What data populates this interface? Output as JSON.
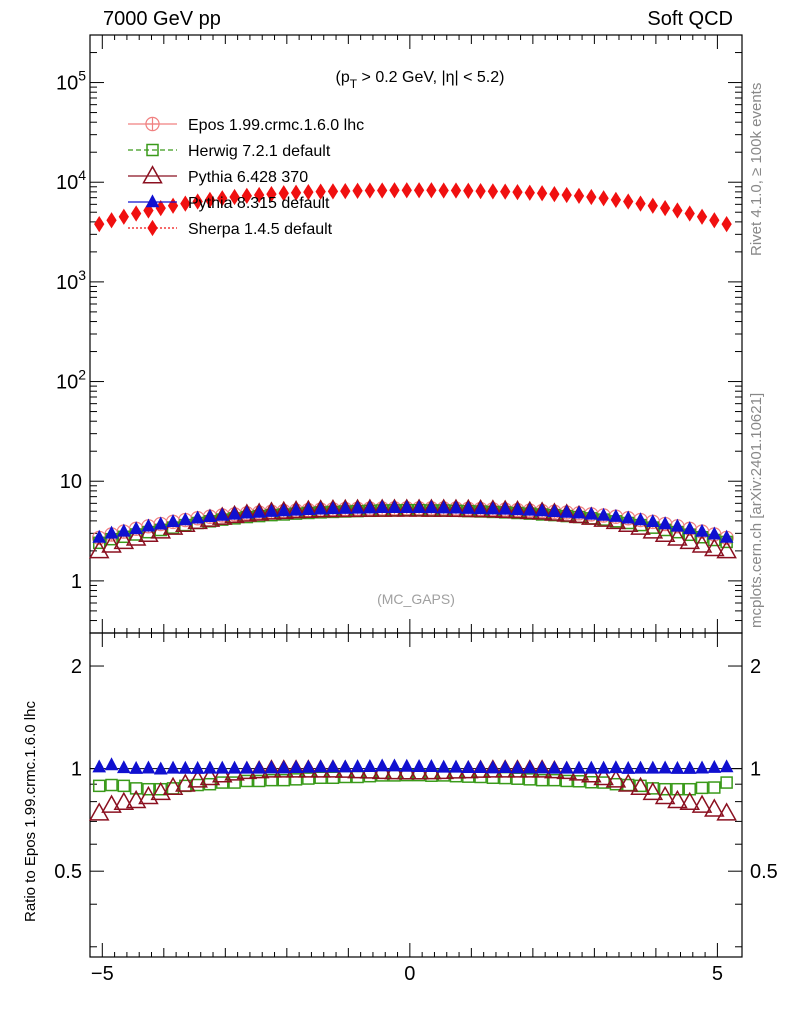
{
  "header": {
    "left": "7000 GeV pp",
    "right": "Soft QCD"
  },
  "side_text": {
    "top": "Rivet 4.1.0, ≥ 100k events",
    "bottom": "mcplots.cern.ch [arXiv:2401.10621]"
  },
  "colors": {
    "epos": "#f08080",
    "herwig": "#3a9a1a",
    "pythia6": "#8b1020",
    "pythia8": "#1010d0",
    "sherpa": "#f01010",
    "axis": "#000000"
  },
  "chart_data": [
    {
      "type": "scatter",
      "title": "(pT > 0.2 GeV, |η| < 5.2)",
      "title_parts": {
        "open": "(p",
        "sub": "T",
        "rest": " > 0.2 GeV, |η| < 5.2)"
      },
      "watermark": "(MC_GAPS)",
      "xlabel": "",
      "ylabel": "",
      "xlim": [
        -5.2,
        5.4
      ],
      "ylim": [
        0.3,
        300000
      ],
      "yscale": "log",
      "ytick_labels": [
        {
          "value": 1,
          "label": "1"
        },
        {
          "value": 10,
          "label": "10"
        },
        {
          "value": 100,
          "base": "10",
          "exp": "2"
        },
        {
          "value": 1000,
          "base": "10",
          "exp": "3"
        },
        {
          "value": 10000,
          "base": "10",
          "exp": "4"
        },
        {
          "value": 100000,
          "base": "10",
          "exp": "5"
        }
      ],
      "legend_position": "top-left",
      "x": [
        -5.05,
        -4.85,
        -4.65,
        -4.45,
        -4.25,
        -4.05,
        -3.85,
        -3.65,
        -3.45,
        -3.25,
        -3.05,
        -2.85,
        -2.65,
        -2.45,
        -2.25,
        -2.05,
        -1.85,
        -1.65,
        -1.45,
        -1.25,
        -1.05,
        -0.85,
        -0.65,
        -0.45,
        -0.25,
        -0.05,
        0.15,
        0.35,
        0.55,
        0.75,
        0.95,
        1.15,
        1.35,
        1.55,
        1.75,
        1.95,
        2.15,
        2.35,
        2.55,
        2.75,
        2.95,
        3.15,
        3.35,
        3.55,
        3.75,
        3.95,
        4.15,
        4.35,
        4.55,
        4.75,
        4.95,
        5.15
      ],
      "series": [
        {
          "name": "Epos 1.99.crmc.1.6.0 lhc",
          "marker": "open-cross-circle",
          "linestyle": "solid",
          "values": [
            2.7,
            2.92,
            3.12,
            3.33,
            3.53,
            3.72,
            3.91,
            4.08,
            4.25,
            4.4,
            4.53,
            4.65,
            4.76,
            4.85,
            4.94,
            5.01,
            5.08,
            5.14,
            5.19,
            5.23,
            5.26,
            5.29,
            5.31,
            5.33,
            5.34,
            5.35,
            5.35,
            5.34,
            5.33,
            5.31,
            5.29,
            5.26,
            5.23,
            5.19,
            5.14,
            5.08,
            5.01,
            4.94,
            4.85,
            4.76,
            4.65,
            4.53,
            4.4,
            4.25,
            4.08,
            3.91,
            3.72,
            3.53,
            3.33,
            3.12,
            2.92,
            2.7
          ]
        },
        {
          "name": "Herwig 7.2.1 default",
          "marker": "open-square",
          "linestyle": "dashed",
          "values": [
            2.41,
            2.62,
            2.77,
            2.92,
            3.08,
            3.24,
            3.42,
            3.63,
            3.81,
            3.96,
            4.12,
            4.24,
            4.37,
            4.47,
            4.57,
            4.64,
            4.73,
            4.8,
            4.87,
            4.92,
            4.97,
            5.01,
            5.05,
            5.09,
            5.1,
            5.12,
            5.12,
            5.09,
            5.09,
            5.05,
            5.01,
            4.97,
            4.92,
            4.87,
            4.8,
            4.73,
            4.64,
            4.57,
            4.47,
            4.37,
            4.24,
            4.12,
            3.96,
            3.81,
            3.63,
            3.42,
            3.24,
            3.08,
            2.9,
            2.74,
            2.57,
            2.46
          ]
        },
        {
          "name": "Pythia 6.428 370",
          "marker": "open-triangle",
          "linestyle": "solid",
          "values": [
            2.0,
            2.28,
            2.48,
            2.68,
            2.92,
            3.16,
            3.44,
            3.68,
            3.93,
            4.14,
            4.34,
            4.51,
            4.66,
            4.77,
            4.89,
            4.96,
            5.04,
            5.09,
            5.14,
            5.17,
            5.19,
            5.21,
            5.22,
            5.22,
            5.23,
            5.23,
            5.23,
            5.22,
            5.22,
            5.21,
            5.19,
            5.17,
            5.14,
            5.09,
            5.04,
            4.96,
            4.89,
            4.77,
            4.66,
            4.51,
            4.34,
            4.14,
            3.93,
            3.68,
            3.44,
            3.16,
            2.92,
            2.68,
            2.48,
            2.28,
            2.1,
            2.0
          ]
        },
        {
          "name": "Pythia 8.315 default",
          "marker": "filled-triangle",
          "linestyle": "solid",
          "values": [
            2.73,
            3.0,
            3.14,
            3.33,
            3.54,
            3.71,
            3.92,
            4.09,
            4.26,
            4.41,
            4.54,
            4.66,
            4.77,
            4.86,
            4.96,
            5.03,
            5.11,
            5.18,
            5.24,
            5.28,
            5.31,
            5.35,
            5.38,
            5.42,
            5.43,
            5.43,
            5.42,
            5.41,
            5.38,
            5.36,
            5.32,
            5.29,
            5.25,
            5.22,
            5.16,
            5.1,
            5.03,
            4.95,
            4.86,
            4.77,
            4.66,
            4.54,
            4.42,
            4.26,
            4.09,
            3.92,
            3.73,
            3.53,
            3.33,
            3.13,
            2.94,
            2.73
          ]
        },
        {
          "name": "Sherpa 1.4.5 default",
          "marker": "filled-diamond",
          "linestyle": "dotted",
          "values": [
            3800,
            4150,
            4500,
            4850,
            5200,
            5500,
            5800,
            6100,
            6400,
            6650,
            6900,
            7100,
            7300,
            7450,
            7600,
            7750,
            7850,
            7950,
            8050,
            8100,
            8150,
            8200,
            8250,
            8250,
            8300,
            8300,
            8300,
            8300,
            8250,
            8250,
            8200,
            8150,
            8100,
            8050,
            7950,
            7850,
            7750,
            7600,
            7450,
            7300,
            7100,
            6900,
            6650,
            6400,
            6100,
            5800,
            5500,
            5200,
            4850,
            4500,
            4150,
            3800
          ]
        }
      ]
    },
    {
      "type": "scatter",
      "title": "",
      "xlabel": "",
      "ylabel": "Ratio to Epos 1.99.crmc.1.6.0 lhc",
      "xlim": [
        -5.2,
        5.4
      ],
      "ylim": [
        0.28,
        2.5
      ],
      "yscale": "log",
      "xtick_labels": [
        {
          "value": -5,
          "label": "−5"
        },
        {
          "value": 0,
          "label": "0"
        },
        {
          "value": 5,
          "label": "5"
        }
      ],
      "ytick_labels": [
        {
          "value": 0.5,
          "label": "0.5"
        },
        {
          "value": 1,
          "label": "1"
        },
        {
          "value": 2,
          "label": "2"
        }
      ],
      "reference_line": 1,
      "x": [
        -5.05,
        -4.85,
        -4.65,
        -4.45,
        -4.25,
        -4.05,
        -3.85,
        -3.65,
        -3.45,
        -3.25,
        -3.05,
        -2.85,
        -2.65,
        -2.45,
        -2.25,
        -2.05,
        -1.85,
        -1.65,
        -1.45,
        -1.25,
        -1.05,
        -0.85,
        -0.65,
        -0.45,
        -0.25,
        -0.05,
        0.15,
        0.35,
        0.55,
        0.75,
        0.95,
        1.15,
        1.35,
        1.55,
        1.75,
        1.95,
        2.15,
        2.35,
        2.55,
        2.75,
        2.95,
        3.15,
        3.35,
        3.55,
        3.75,
        3.95,
        4.15,
        4.35,
        4.55,
        4.75,
        4.95,
        5.15
      ],
      "series": [
        {
          "name": "Herwig 7.2.1 default",
          "marker": "open-square",
          "values": [
            0.89,
            0.895,
            0.89,
            0.875,
            0.87,
            0.87,
            0.875,
            0.89,
            0.895,
            0.9,
            0.91,
            0.91,
            0.92,
            0.92,
            0.925,
            0.925,
            0.93,
            0.935,
            0.94,
            0.94,
            0.945,
            0.945,
            0.95,
            0.955,
            0.955,
            0.957,
            0.957,
            0.953,
            0.955,
            0.95,
            0.947,
            0.945,
            0.94,
            0.938,
            0.934,
            0.93,
            0.925,
            0.925,
            0.92,
            0.918,
            0.912,
            0.91,
            0.9,
            0.895,
            0.89,
            0.875,
            0.87,
            0.87,
            0.87,
            0.878,
            0.88,
            0.91
          ]
        },
        {
          "name": "Pythia 6.428 370",
          "marker": "open-triangle",
          "values": [
            0.74,
            0.78,
            0.795,
            0.805,
            0.827,
            0.85,
            0.88,
            0.9,
            0.925,
            0.94,
            0.958,
            0.97,
            0.98,
            0.985,
            0.99,
            0.99,
            0.99,
            0.99,
            0.99,
            0.99,
            0.988,
            0.985,
            0.983,
            0.98,
            0.978,
            0.977,
            0.977,
            0.978,
            0.98,
            0.983,
            0.985,
            0.988,
            0.99,
            0.99,
            0.99,
            0.99,
            0.99,
            0.985,
            0.98,
            0.97,
            0.958,
            0.94,
            0.925,
            0.9,
            0.88,
            0.85,
            0.827,
            0.805,
            0.795,
            0.78,
            0.76,
            0.74
          ]
        },
        {
          "name": "Pythia 8.315 default",
          "marker": "filled-triangle",
          "values": [
            1.01,
            1.025,
            1.005,
            1.0,
            1.003,
            0.996,
            1.002,
            1.001,
            1.0,
            1.002,
            1.002,
            1.002,
            1.002,
            1.002,
            1.004,
            1.004,
            1.006,
            1.008,
            1.01,
            1.01,
            1.01,
            1.012,
            1.013,
            1.017,
            1.017,
            1.015,
            1.013,
            1.013,
            1.009,
            1.009,
            1.006,
            1.006,
            1.004,
            1.006,
            1.004,
            1.004,
            1.004,
            1.002,
            1.002,
            1.002,
            1.002,
            1.002,
            1.005,
            1.0,
            1.002,
            1.002,
            1.003,
            1.0,
            1.0,
            1.003,
            1.007,
            1.011
          ]
        }
      ]
    }
  ]
}
